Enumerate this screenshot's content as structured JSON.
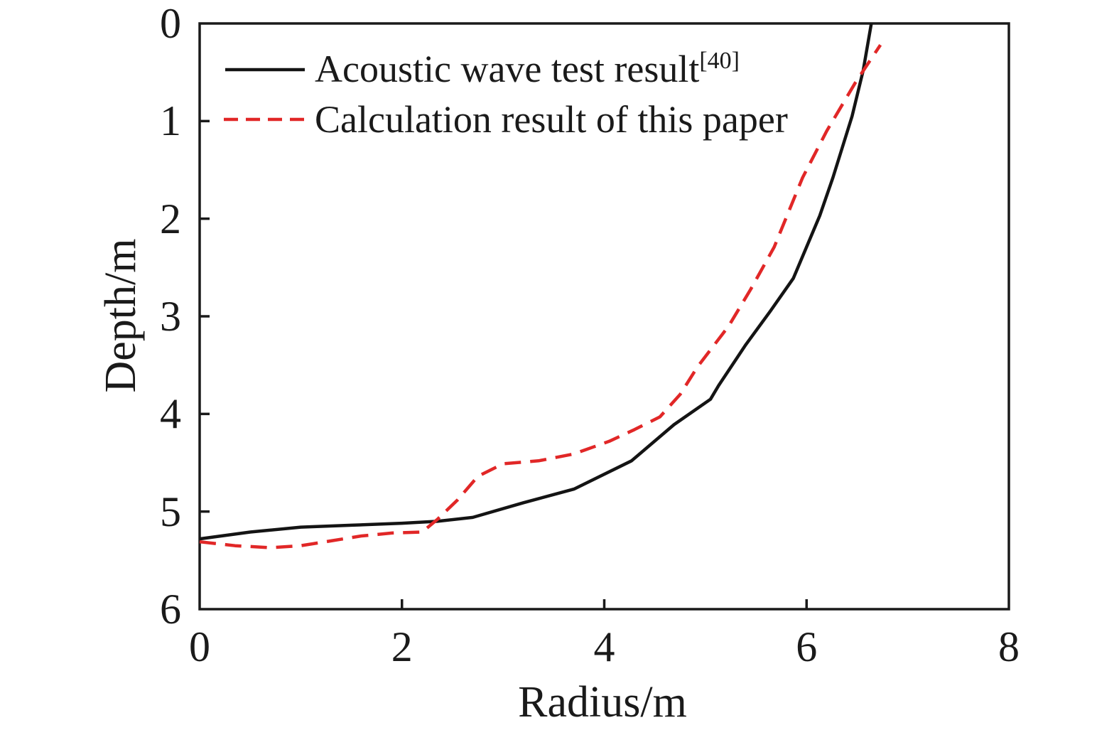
{
  "legend": {
    "items": [
      {
        "label": "Acoustic wave test result",
        "citation": "[40]",
        "line_style": "solid"
      },
      {
        "label": "Calculation result of this paper",
        "citation": "",
        "line_style": "dashed"
      }
    ]
  },
  "chart_data": {
    "type": "line",
    "title": "",
    "xlabel": "Radius/m",
    "ylabel": "Depth/m",
    "grid": false,
    "legend_position": "top-left-inside",
    "x_axis": {
      "min": 0,
      "max": 8,
      "ticks": [
        0,
        2,
        4,
        6,
        8
      ]
    },
    "y_axis": {
      "min": 0,
      "max": 6,
      "ticks": [
        0,
        1,
        2,
        3,
        4,
        5,
        6
      ],
      "inverted": true,
      "note": "depth increases downward"
    },
    "series": [
      {
        "name": "Acoustic wave test result [40]",
        "color": "#141414",
        "line_style": "solid",
        "points": [
          [
            0,
            5.28
          ],
          [
            0.5,
            5.21
          ],
          [
            1.0,
            5.16
          ],
          [
            1.5,
            5.14
          ],
          [
            2.0,
            5.12
          ],
          [
            2.35,
            5.1
          ],
          [
            2.7,
            5.06
          ],
          [
            3.2,
            4.91
          ],
          [
            3.7,
            4.77
          ],
          [
            4.27,
            4.48
          ],
          [
            4.69,
            4.11
          ],
          [
            5.05,
            3.85
          ],
          [
            5.13,
            3.71
          ],
          [
            5.4,
            3.29
          ],
          [
            5.64,
            2.95
          ],
          [
            5.87,
            2.61
          ],
          [
            6.13,
            1.97
          ],
          [
            6.26,
            1.58
          ],
          [
            6.45,
            0.95
          ],
          [
            6.56,
            0.48
          ],
          [
            6.64,
            0.0
          ]
        ]
      },
      {
        "name": "Calculation result of this paper",
        "color": "#e12727",
        "line_style": "dashed",
        "points": [
          [
            0,
            5.31
          ],
          [
            0.35,
            5.35
          ],
          [
            0.7,
            5.37
          ],
          [
            1.0,
            5.35
          ],
          [
            1.3,
            5.3
          ],
          [
            1.6,
            5.25
          ],
          [
            1.9,
            5.22
          ],
          [
            2.2,
            5.21
          ],
          [
            2.35,
            5.08
          ],
          [
            2.55,
            4.88
          ],
          [
            2.75,
            4.64
          ],
          [
            3.0,
            4.51
          ],
          [
            3.35,
            4.48
          ],
          [
            3.7,
            4.41
          ],
          [
            4.05,
            4.28
          ],
          [
            4.3,
            4.16
          ],
          [
            4.55,
            4.03
          ],
          [
            4.75,
            3.8
          ],
          [
            4.92,
            3.52
          ],
          [
            5.23,
            3.1
          ],
          [
            5.45,
            2.72
          ],
          [
            5.68,
            2.29
          ],
          [
            5.96,
            1.58
          ],
          [
            6.2,
            1.1
          ],
          [
            6.48,
            0.61
          ],
          [
            6.73,
            0.22
          ]
        ]
      }
    ]
  },
  "colors": {
    "axis": "#1a1a1a",
    "series_test": "#141414",
    "series_calculation": "#e12727",
    "background": "#ffffff"
  }
}
